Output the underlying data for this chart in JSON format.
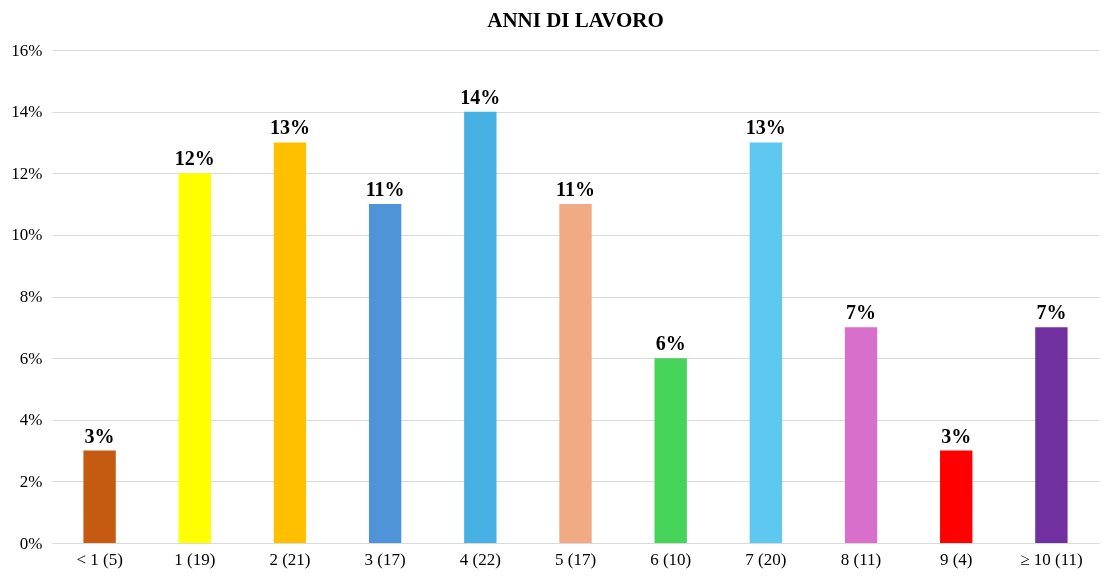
{
  "chart_data": {
    "type": "bar",
    "title": "ANNI DI LAVORO",
    "categories": [
      "< 1 (5)",
      "1 (19)",
      "2 (21)",
      "3 (17)",
      "4 (22)",
      "5 (17)",
      "6 (10)",
      "7 (20)",
      "8 (11)",
      "9 (4)",
      "≥ 10 (11)"
    ],
    "values": [
      3,
      12,
      13,
      11,
      14,
      11,
      6,
      13,
      7,
      3,
      7
    ],
    "value_labels": [
      "3%",
      "12%",
      "13%",
      "11%",
      "14%",
      "11%",
      "6%",
      "13%",
      "7%",
      "3%",
      "7%"
    ],
    "colors": [
      "#c55a11",
      "#ffff00",
      "#ffc000",
      "#4f94d9",
      "#45b0e1",
      "#f0aa84",
      "#46d35a",
      "#5fc8f0",
      "#d86fcb",
      "#ff0000",
      "#7030a0"
    ],
    "ylim": [
      0,
      16
    ],
    "yticks": [
      {
        "value": 0,
        "label": "0%"
      },
      {
        "value": 2,
        "label": "2%"
      },
      {
        "value": 4,
        "label": "4%"
      },
      {
        "value": 6,
        "label": "6%"
      },
      {
        "value": 8,
        "label": "8%"
      },
      {
        "value": 10,
        "label": "10%"
      },
      {
        "value": 12,
        "label": "12%"
      },
      {
        "value": 14,
        "label": "14%"
      },
      {
        "value": 16,
        "label": "16%"
      }
    ],
    "grid": "y"
  }
}
